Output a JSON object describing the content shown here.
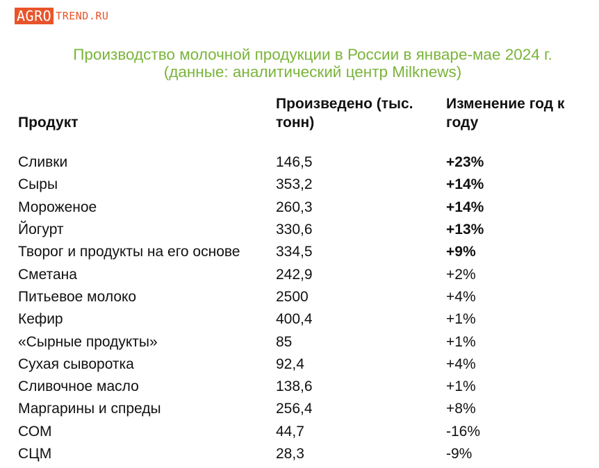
{
  "logo": {
    "box_text": "AGRO",
    "rest_text": "TREND.RU"
  },
  "title": {
    "line1": "Производство молочной продукции в России в январе-мае 2024 г.",
    "line2": "(данные: аналитический центр Milknews)"
  },
  "colors": {
    "title": "#7ab43a",
    "logo": "#e8542a"
  },
  "chart_data": {
    "type": "table",
    "columns": [
      "Продукт",
      "Произведено (тыс. тонн)",
      "Изменение год к году"
    ],
    "rows": [
      {
        "product": "Сливки",
        "produced": "146,5",
        "change": "+23%",
        "bold": true
      },
      {
        "product": "Сыры",
        "produced": "353,2",
        "change": "+14%",
        "bold": true
      },
      {
        "product": "Мороженое",
        "produced": "260,3",
        "change": "+14%",
        "bold": true
      },
      {
        "product": "Йогурт",
        "produced": "330,6",
        "change": "+13%",
        "bold": true
      },
      {
        "product": "Творог и продукты на его основе",
        "produced": "334,5",
        "change": "+9%",
        "bold": true
      },
      {
        "product": "Сметана",
        "produced": "242,9",
        "change": "+2%",
        "bold": false
      },
      {
        "product": "Питьевое молоко",
        "produced": "2500",
        "change": "+4%",
        "bold": false
      },
      {
        "product": "Кефир",
        "produced": "400,4",
        "change": "+1%",
        "bold": false
      },
      {
        "product": "«Сырные продукты»",
        "produced": "85",
        "change": "+1%",
        "bold": false
      },
      {
        "product": "Сухая сыворотка",
        "produced": "92,4",
        "change": "+4%",
        "bold": false
      },
      {
        "product": "Сливочное масло",
        "produced": "138,6",
        "change": "+1%",
        "bold": false
      },
      {
        "product": "Маргарины и спреды",
        "produced": "256,4",
        "change": "+8%",
        "bold": false
      },
      {
        "product": "СОМ",
        "produced": "44,7",
        "change": "-16%",
        "bold": false
      },
      {
        "product": "СЦМ",
        "produced": "28,3",
        "change": "-9%",
        "bold": false
      }
    ]
  }
}
